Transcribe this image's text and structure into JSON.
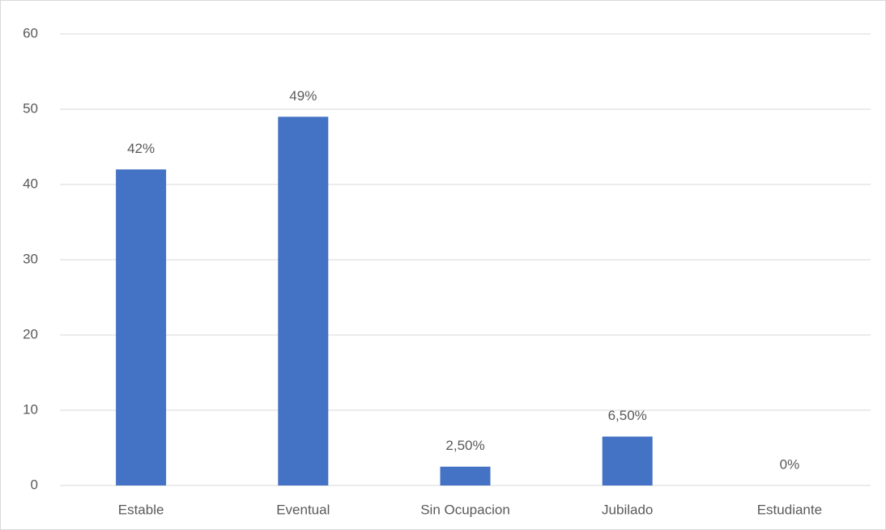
{
  "chart_data": {
    "type": "bar",
    "categories": [
      "Estable",
      "Eventual",
      "Sin Ocupacion",
      "Jubilado",
      "Estudiante"
    ],
    "values": [
      42,
      49,
      2.5,
      6.5,
      0
    ],
    "value_labels": [
      "42%",
      "49%",
      "2,50%",
      "6,50%",
      "0%"
    ],
    "color": "#4472c4",
    "ylim": [
      0,
      60
    ],
    "yticks": [
      0,
      10,
      20,
      30,
      40,
      50,
      60
    ],
    "grid": true
  }
}
